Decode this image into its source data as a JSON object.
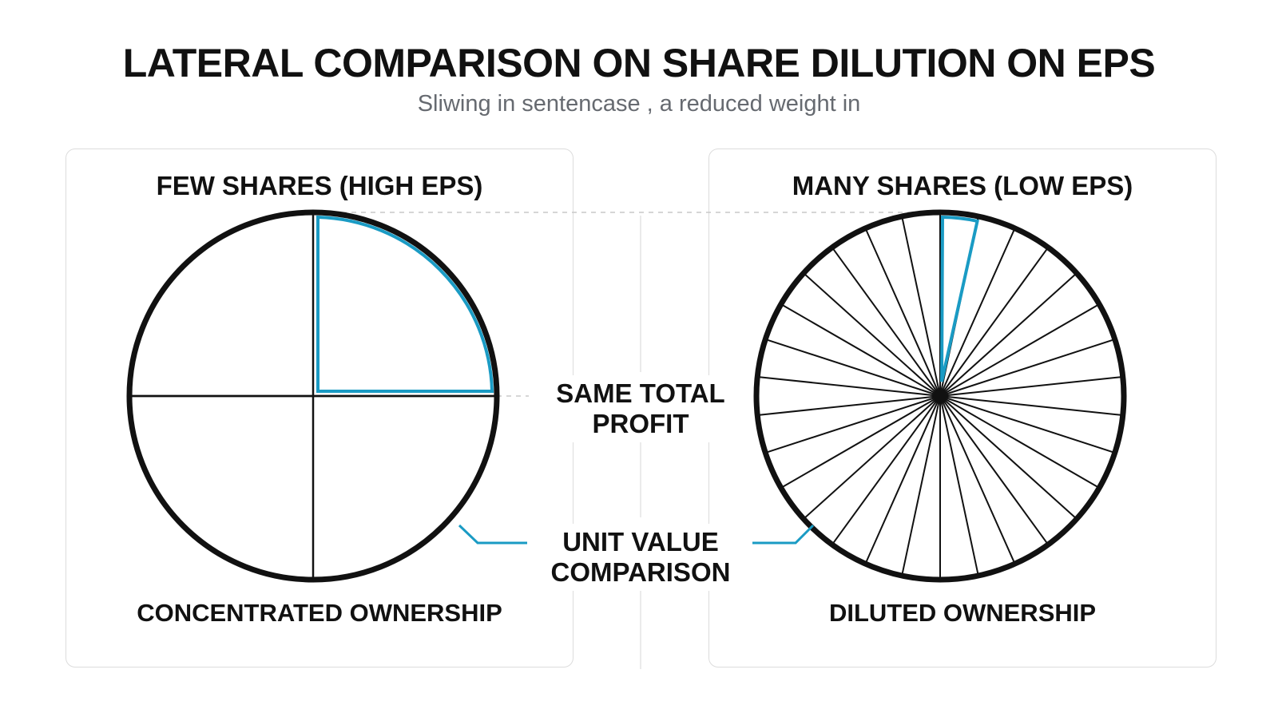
{
  "header": {
    "title": "LATERAL COMPARISON ON SHARE DILUTION ON EPS",
    "subtitle": "Sliwing in sentencase , a reduced weight in"
  },
  "left_panel": {
    "title": "FEW SHARES (HIGH EPS)",
    "caption": "CONCENTRATED OWNERSHIP",
    "slices": 4,
    "highlighted_slice": 1
  },
  "right_panel": {
    "title": "MANY SHARES (LOW EPS)",
    "caption": "DILUTED OWNERSHIP",
    "slices": 30,
    "highlighted_slice": 1
  },
  "center": {
    "profit_label_line1": "SAME TOTAL",
    "profit_label_line2": "PROFIT",
    "unit_label_line1": "UNIT VALUE",
    "unit_label_line2": "COMPARISON"
  },
  "colors": {
    "accent": "#1a9bc4",
    "outline": "#111111",
    "guide": "#c8c8c8"
  }
}
